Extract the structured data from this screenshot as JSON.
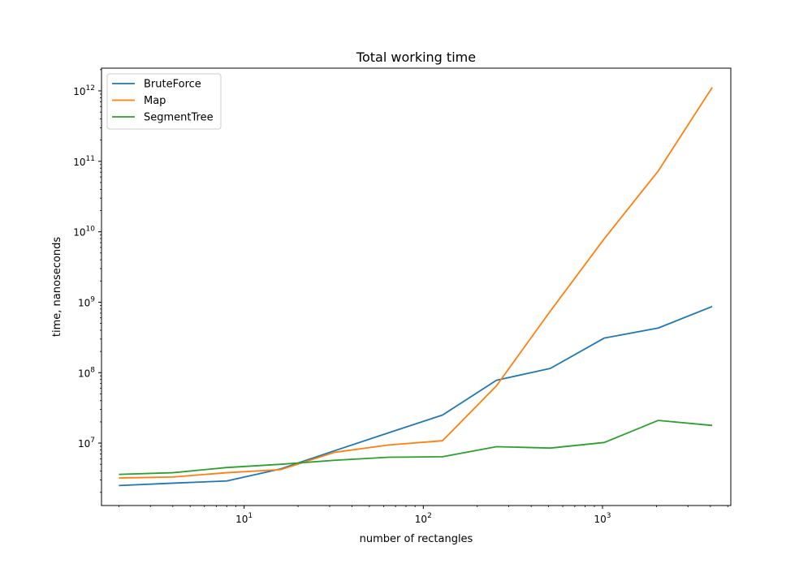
{
  "chart_data": {
    "type": "line",
    "title": "Total working time",
    "xlabel": "number of rectangles",
    "ylabel": "time, nanoseconds",
    "xscale": "log",
    "yscale": "log",
    "xlim": [
      1.6,
      5200
    ],
    "ylim": [
      1300000,
      2100000000000
    ],
    "x": [
      2,
      4,
      8,
      16,
      32,
      64,
      128,
      256,
      512,
      1024,
      2048,
      4096
    ],
    "xticks": [
      {
        "value": 10,
        "base": "10",
        "exp": "1"
      },
      {
        "value": 100,
        "base": "10",
        "exp": "2"
      },
      {
        "value": 1000,
        "base": "10",
        "exp": "3"
      }
    ],
    "yticks": [
      {
        "value": 10000000,
        "base": "10",
        "exp": "7"
      },
      {
        "value": 100000000,
        "base": "10",
        "exp": "8"
      },
      {
        "value": 1000000000,
        "base": "10",
        "exp": "9"
      },
      {
        "value": 10000000000,
        "base": "10",
        "exp": "10"
      },
      {
        "value": 100000000000,
        "base": "10",
        "exp": "11"
      },
      {
        "value": 1000000000000,
        "base": "10",
        "exp": "12"
      }
    ],
    "grid": false,
    "legend_position": "top-left",
    "series": [
      {
        "name": "BruteForce",
        "color": "#1f77b4",
        "values": [
          2500000,
          2700000,
          2900000,
          4300000,
          7800000,
          14000000,
          25000000,
          78000000,
          115000000,
          310000000,
          430000000,
          870000000
        ]
      },
      {
        "name": "Map",
        "color": "#ff7f0e",
        "values": [
          3200000,
          3300000,
          3800000,
          4200000,
          7400000,
          9400000,
          10800000,
          65000000,
          750000000,
          8000000000,
          73000000000,
          1120000000000
        ]
      },
      {
        "name": "SegmentTree",
        "color": "#2ca02c",
        "values": [
          3600000,
          3800000,
          4500000,
          5000000,
          5700000,
          6300000,
          6400000,
          8900000,
          8500000,
          10200000,
          21000000,
          17800000
        ]
      }
    ]
  }
}
